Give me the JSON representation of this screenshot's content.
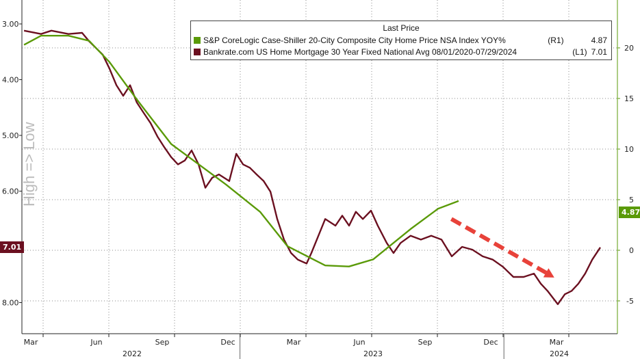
{
  "chart_data": {
    "type": "line",
    "x_unit": "months since 2022-03-01",
    "xlim": [
      -0.3,
      26.5
    ],
    "x_ticks": [
      {
        "m": 0,
        "label": "Mar"
      },
      {
        "m": 3,
        "label": "Jun"
      },
      {
        "m": 6,
        "label": "Sep"
      },
      {
        "m": 9,
        "label": "Dec"
      },
      {
        "m": 12,
        "label": "Mar"
      },
      {
        "m": 15,
        "label": "Jun"
      },
      {
        "m": 18,
        "label": "Sep"
      },
      {
        "m": 21,
        "label": "Dec"
      },
      {
        "m": 24,
        "label": "Mar"
      }
    ],
    "years": [
      {
        "m": 4.5,
        "label": "2022"
      },
      {
        "m": 15.5,
        "label": "2023"
      },
      {
        "m": 24,
        "label": "2024"
      }
    ],
    "year_separators": [
      9.55,
      21.6
    ],
    "left_axis": {
      "label": "High => Low",
      "inverted": true,
      "ylim": [
        2.6,
        8.6
      ],
      "ticks": [
        "3.00",
        "4.00",
        "5.00",
        "6.00",
        "8.00"
      ],
      "tick_values": [
        3,
        4,
        5,
        6,
        8
      ]
    },
    "right_axis": {
      "ylim": [
        -8,
        24.7
      ],
      "ticks": [
        "20",
        "15",
        "10",
        "5",
        "0",
        "-5"
      ],
      "tick_values": [
        20,
        15,
        10,
        5,
        0,
        -5
      ]
    },
    "legend": {
      "title": "Last Price",
      "placement": "top-right",
      "entries": [
        {
          "name": "S&P CoreLogic Case-Shiller 20-City Composite City Home Price NSA Index YOY%",
          "axis": "(R1)",
          "last": "4.87",
          "color": "#5a9a08"
        },
        {
          "name": "Bankrate.com US Home Mortgage 30 Year Fixed National Avg 08/01/2020-07/29/2024",
          "axis": "(L1)",
          "last": "7.01",
          "color": "#6b1020"
        }
      ]
    },
    "series": [
      {
        "name": "Bankrate.com US Home Mortgage 30 Year Fixed National Avg",
        "axis": "left",
        "color": "#6b1020",
        "x": [
          -0.31,
          0.47,
          0.94,
          1.72,
          2.34,
          2.66,
          3.28,
          3.59,
          3.91,
          4.22,
          4.53,
          4.84,
          5.16,
          5.47,
          5.78,
          6.09,
          6.41,
          6.72,
          7.03,
          7.34,
          7.66,
          7.97,
          8.28,
          8.59,
          9.06,
          9.38,
          9.69,
          10,
          10.31,
          10.63,
          10.94,
          11.25,
          11.56,
          11.88,
          12.19,
          12.59,
          12.81,
          13.13,
          13.44,
          13.91,
          14.22,
          14.53,
          14.84,
          15.16,
          15.53,
          15.84,
          16.25,
          16.56,
          16.88,
          17.34,
          17.81,
          18.28,
          18.75,
          19.22,
          19.69,
          20.16,
          20.63,
          21.09,
          21.56,
          22.03,
          22.5,
          22.97,
          23.28,
          23.59,
          24.06,
          24.38,
          24.69,
          25,
          25.31,
          25.63,
          26
        ],
        "y": [
          3.12,
          3.18,
          3.12,
          3.18,
          3.16,
          3.31,
          3.55,
          3.8,
          4.1,
          4.29,
          4.1,
          4.41,
          4.6,
          4.78,
          5.02,
          5.21,
          5.39,
          5.52,
          5.45,
          5.27,
          5.52,
          5.94,
          5.76,
          5.7,
          5.82,
          5.33,
          5.52,
          5.58,
          5.7,
          5.82,
          6.01,
          6.5,
          6.87,
          7.11,
          7.23,
          7.3,
          7.11,
          6.8,
          6.5,
          6.62,
          6.44,
          6.62,
          6.37,
          6.5,
          6.35,
          6.62,
          6.93,
          7.11,
          6.93,
          6.8,
          6.87,
          6.8,
          6.87,
          7.17,
          7.0,
          7.05,
          7.17,
          7.23,
          7.36,
          7.54,
          7.54,
          7.48,
          7.66,
          7.79,
          8.03,
          7.85,
          7.79,
          7.66,
          7.48,
          7.23,
          7.01
        ]
      },
      {
        "name": "S&P CoreLogic Case-Shiller 20-City Composite YOY%",
        "axis": "right",
        "color": "#5a9a08",
        "x": [
          -0.31,
          0.47,
          1.72,
          2.66,
          3.59,
          4.84,
          6.41,
          7.66,
          8.91,
          10.47,
          11.72,
          13.44,
          14.53,
          15.63,
          17.34,
          18.59,
          19.53
        ],
        "y": [
          20.3,
          21.2,
          21.2,
          20.7,
          18.6,
          14.9,
          10.5,
          8.5,
          6.5,
          3.8,
          0.4,
          -1.5,
          -1.6,
          -0.9,
          2.1,
          4.1,
          4.87
        ]
      }
    ],
    "badges": {
      "left": "7.01",
      "right": "4.87"
    },
    "annotation": {
      "type": "dashed-arrow",
      "color": "#e8423a",
      "from": [
        19.2,
        6.5
      ],
      "to": [
        23.9,
        7.55
      ],
      "note": "points down-right toward 2024 mortgage-rate low"
    }
  }
}
